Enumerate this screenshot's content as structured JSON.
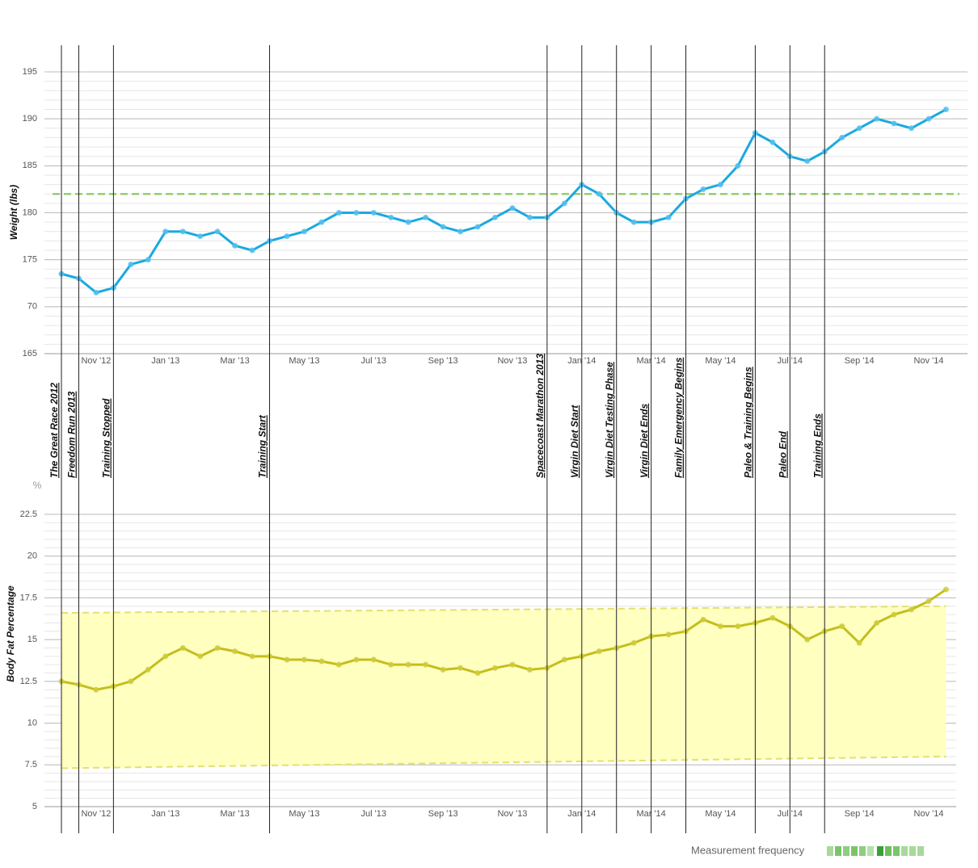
{
  "chart_data": [
    {
      "type": "line",
      "ylabel": "Weight (lbs)",
      "color": "#1aa9e0",
      "dot_color": "#55c0ec",
      "categories": [
        null,
        null,
        "Nov '12",
        null,
        null,
        null,
        "Jan '13",
        null,
        null,
        null,
        "Mar '13",
        null,
        null,
        null,
        "May '13",
        null,
        null,
        null,
        "Jul '13",
        null,
        null,
        null,
        "Sep '13",
        null,
        null,
        null,
        "Nov '13",
        null,
        null,
        null,
        "Jan '14",
        null,
        null,
        null,
        "Mar '14",
        null,
        null,
        null,
        "May '14",
        null,
        null,
        null,
        "Jul '14",
        null,
        null,
        null,
        "Sep '14",
        null,
        null,
        null,
        "Nov '14",
        null
      ],
      "values": [
        173.5,
        173,
        171.5,
        172,
        174.5,
        175,
        178,
        178,
        177.5,
        178,
        176.5,
        176,
        177,
        177.5,
        178,
        179,
        180,
        180,
        180,
        179.5,
        179,
        179.5,
        178.5,
        178,
        178.5,
        179.5,
        180.5,
        179.5,
        179.5,
        181,
        183,
        182,
        180,
        179,
        179,
        179.5,
        181.5,
        182.5,
        183,
        185,
        188.5,
        187.5,
        186,
        185.5,
        186.5,
        188,
        189,
        190,
        189.5,
        189,
        190,
        191
      ],
      "ylim": [
        165,
        195
      ],
      "yticks": [
        165,
        {
          "value": 170,
          "label": "70"
        },
        175,
        180,
        185,
        190,
        195
      ],
      "target": 182,
      "target_color": "#8fd16a",
      "grid": true
    },
    {
      "type": "line",
      "ylabel": "Body Fat Percentage",
      "unit_label": "%",
      "color": "#c4be1c",
      "dot_color": "#cfcb3c",
      "categories": [
        null,
        null,
        "Nov '12",
        null,
        null,
        null,
        "Jan '13",
        null,
        null,
        null,
        "Mar '13",
        null,
        null,
        null,
        "May '13",
        null,
        null,
        null,
        "Jul '13",
        null,
        null,
        null,
        "Sep '13",
        null,
        null,
        null,
        "Nov '13",
        null,
        null,
        null,
        "Jan '14",
        null,
        null,
        null,
        "Mar '14",
        null,
        null,
        null,
        "May '14",
        null,
        null,
        null,
        "Jul '14",
        null,
        null,
        null,
        "Sep '14",
        null,
        null,
        null,
        "Nov '14",
        null
      ],
      "values": [
        12.5,
        12.3,
        12,
        12.2,
        12.5,
        13.2,
        14,
        14.5,
        14,
        14.5,
        14.3,
        14,
        14,
        13.8,
        13.8,
        13.7,
        13.5,
        13.8,
        13.8,
        13.5,
        13.5,
        13.5,
        13.2,
        13.3,
        13,
        13.3,
        13.5,
        13.2,
        13.3,
        13.8,
        14,
        14.3,
        14.5,
        14.8,
        15.2,
        15.3,
        15.5,
        16.2,
        15.8,
        15.8,
        16,
        16.3,
        15.8,
        15,
        15.5,
        15.8,
        14.8,
        16,
        16.5,
        16.8,
        17.3,
        18
      ],
      "ylim": [
        5,
        22.5
      ],
      "yticks": [
        5,
        7.5,
        10,
        12.5,
        15,
        17.5,
        20,
        22.5
      ],
      "band_lower": [
        7.3,
        8
      ],
      "band_upper": [
        16.6,
        17
      ],
      "band_color": "#ffffc0",
      "grid": true
    }
  ],
  "events": [
    {
      "label": "The Great Race 2012",
      "slot": 0
    },
    {
      "label": "Freedom Run 2013",
      "slot": 1
    },
    {
      "label": "Training Stopped",
      "slot": 3
    },
    {
      "label": "Training Start",
      "slot": 12
    },
    {
      "label": "Spacecoast Marathon 2013",
      "slot": 28
    },
    {
      "label": "Virgin Diet Start",
      "slot": 30
    },
    {
      "label": "Virgin Diet Testing Phase",
      "slot": 32
    },
    {
      "label": "Virgin Diet Ends",
      "slot": 34
    },
    {
      "label": "Family Emergency Begins",
      "slot": 36
    },
    {
      "label": "Paleo & Training Begins",
      "slot": 40
    },
    {
      "label": "Paleo End",
      "slot": 42
    },
    {
      "label": "Training Ends",
      "slot": 44
    }
  ],
  "legend": {
    "label": "Measurement frequency"
  }
}
